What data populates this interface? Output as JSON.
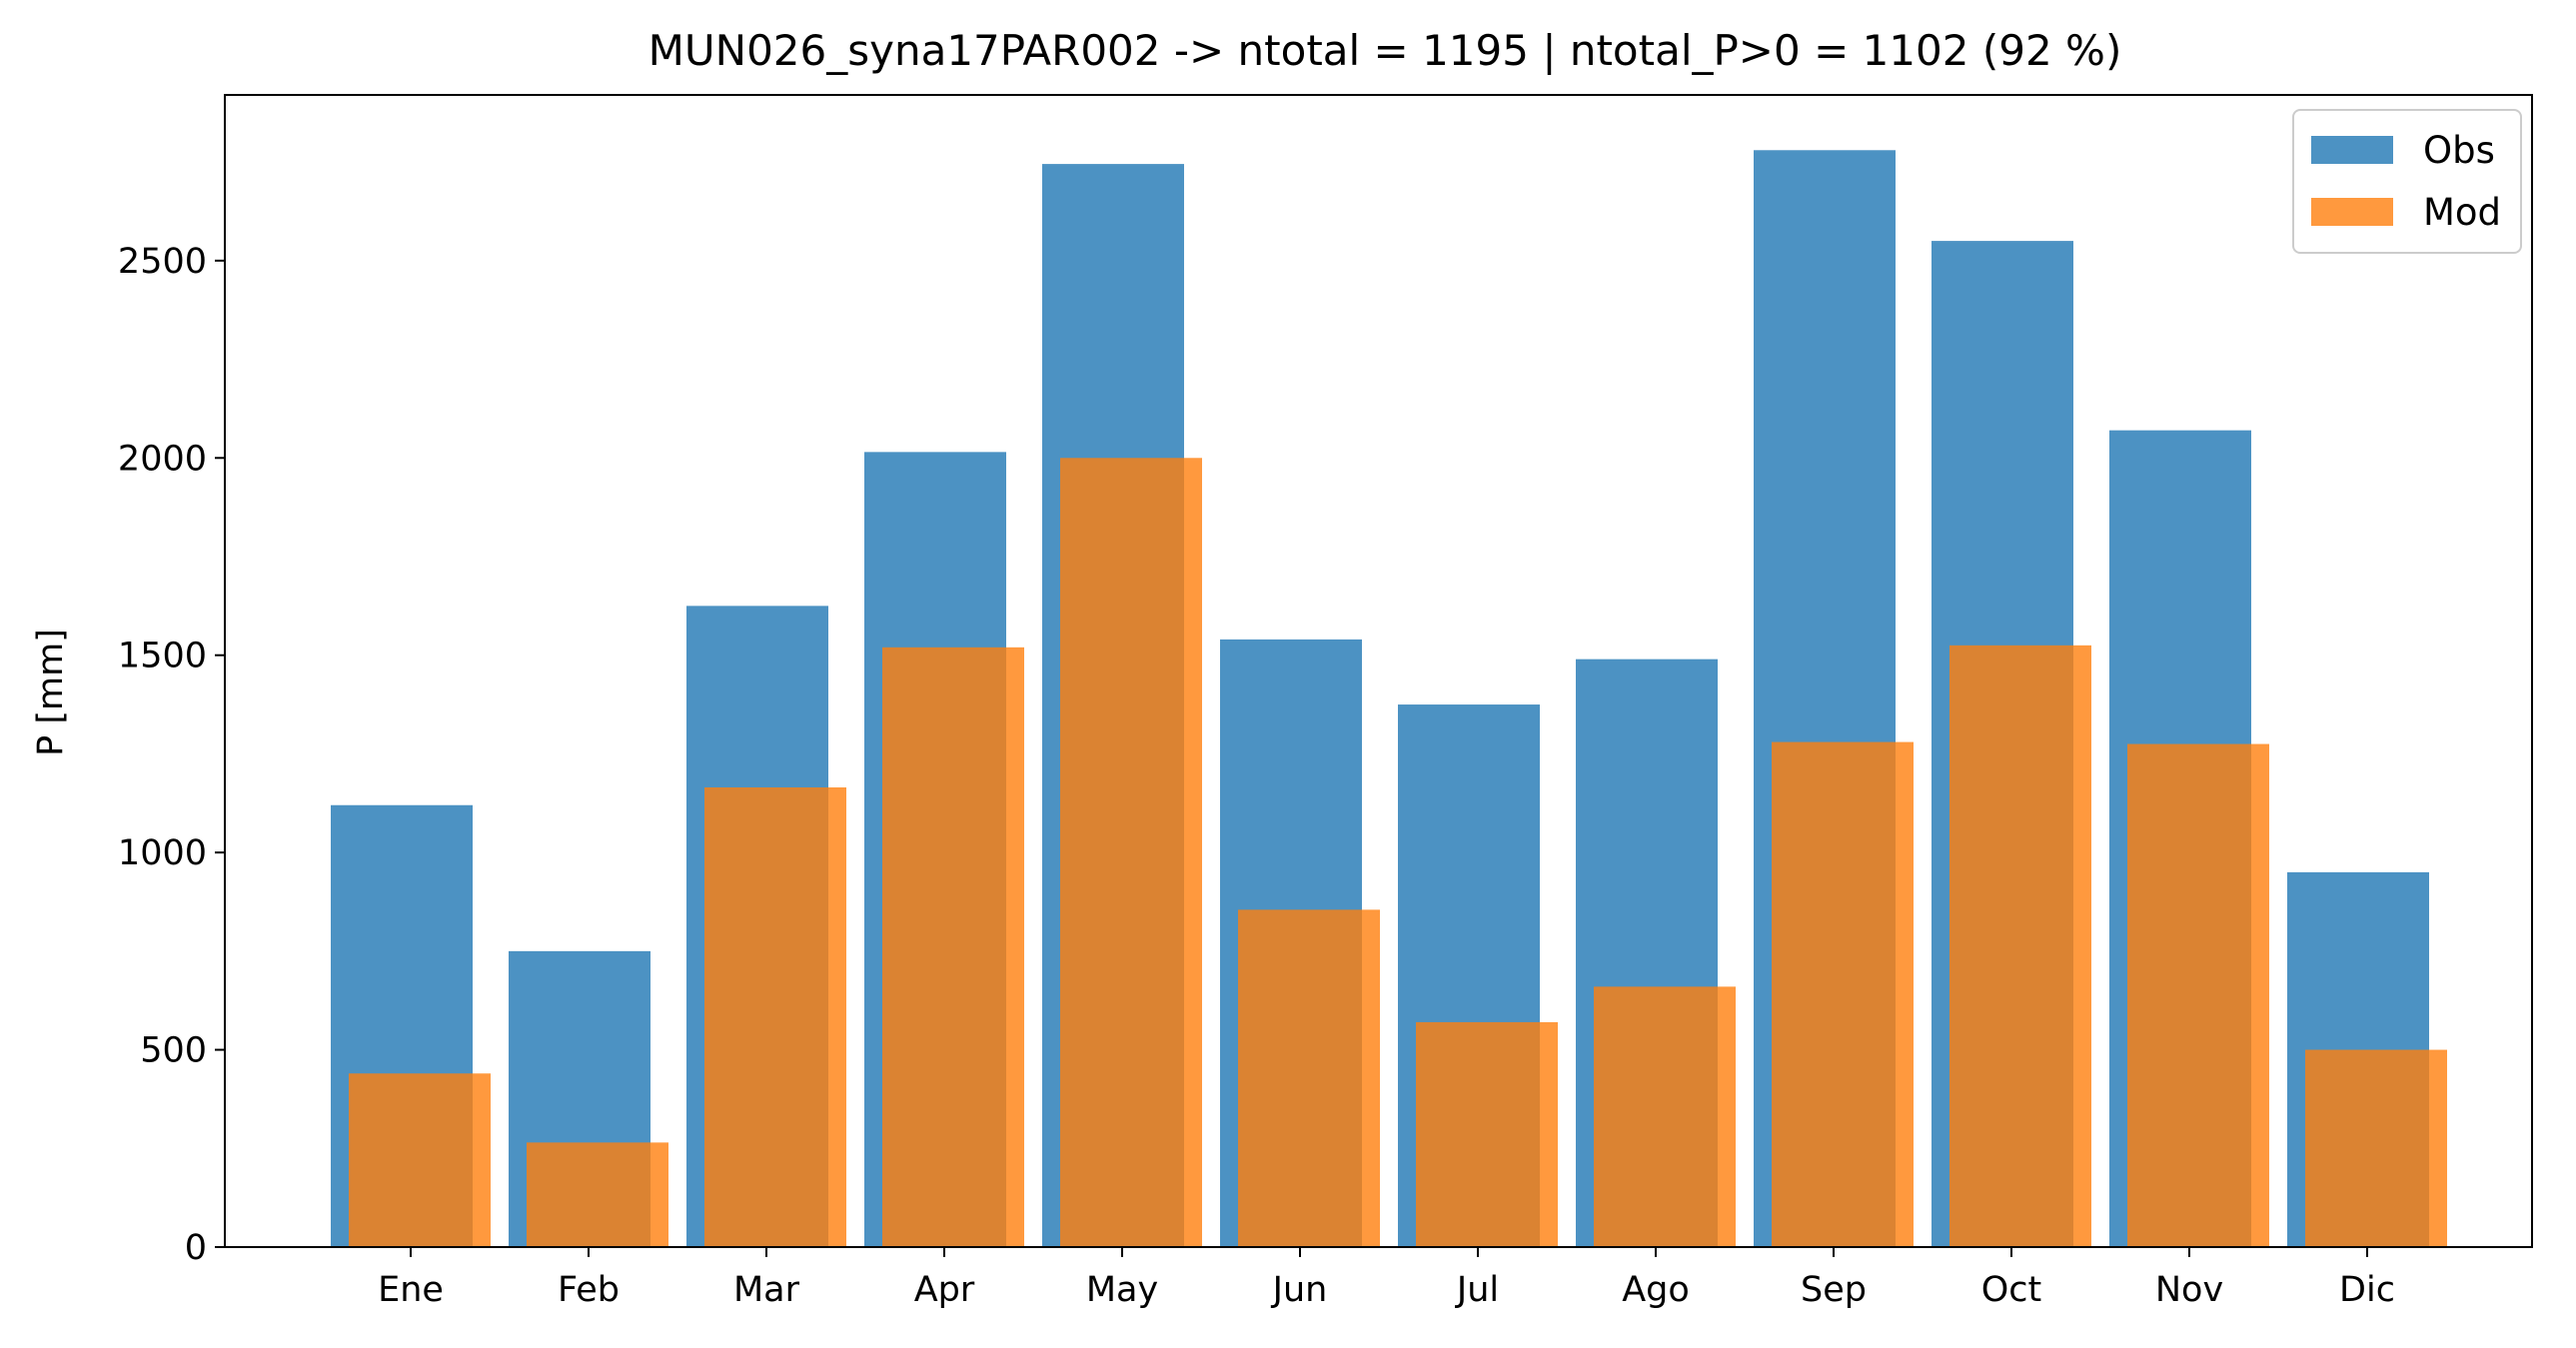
{
  "chart_data": {
    "type": "bar",
    "title": "MUN026_syna17PAR002 -> ntotal = 1195 | ntotal_P>0 = 1102 (92 %)",
    "xlabel": "",
    "ylabel": "P [mm]",
    "ylim": [
      0,
      2920
    ],
    "yticks": [
      0,
      500,
      1000,
      1500,
      2000,
      2500
    ],
    "categories": [
      "Ene",
      "Feb",
      "Mar",
      "Apr",
      "May",
      "Jun",
      "Jul",
      "Ago",
      "Sep",
      "Oct",
      "Nov",
      "Dic"
    ],
    "series": [
      {
        "name": "Obs",
        "color": "#1f77b4",
        "values": [
          1120,
          750,
          1625,
          2015,
          2745,
          1540,
          1375,
          1490,
          2780,
          2550,
          2070,
          950
        ]
      },
      {
        "name": "Mod",
        "color": "#ff7f0e",
        "values": [
          440,
          265,
          1165,
          1520,
          2000,
          855,
          570,
          660,
          1280,
          1525,
          1275,
          500
        ]
      }
    ],
    "legend_position": "top-right",
    "grid": false
  }
}
